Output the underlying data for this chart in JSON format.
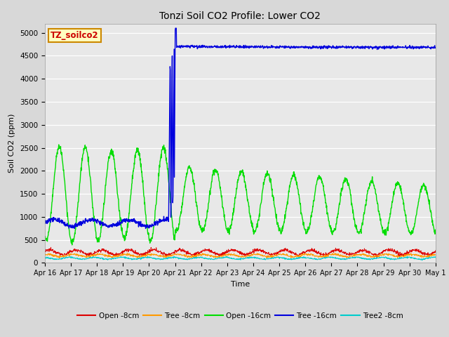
{
  "title": "Tonzi Soil CO2 Profile: Lower CO2",
  "xlabel": "Time",
  "ylabel": "Soil CO2 (ppm)",
  "ylim": [
    0,
    5200
  ],
  "yticks": [
    0,
    500,
    1000,
    1500,
    2000,
    2500,
    3000,
    3500,
    4000,
    4500,
    5000
  ],
  "fig_bg": "#d8d8d8",
  "plot_bg": "#e8e8e8",
  "legend_label": "TZ_soilco2",
  "series": {
    "open_8cm": {
      "color": "#dd0000",
      "label": "Open -8cm"
    },
    "tree_8cm": {
      "color": "#ff9900",
      "label": "Tree -8cm"
    },
    "open_16cm": {
      "color": "#00dd00",
      "label": "Open -16cm"
    },
    "tree_16cm": {
      "color": "#0000dd",
      "label": "Tree -16cm"
    },
    "tree2_8cm": {
      "color": "#00cccc",
      "label": "Tree2 -8cm"
    }
  },
  "x_tick_labels": [
    "Apr 16",
    "Apr 17",
    "Apr 18",
    "Apr 19",
    "Apr 20",
    "Apr 21",
    "Apr 22",
    "Apr 23",
    "Apr 24",
    "Apr 25",
    "Apr 26",
    "Apr 27",
    "Apr 28",
    "Apr 29",
    "Apr 30",
    "May 1"
  ],
  "n_days": 15,
  "pts_per_day": 96,
  "spike_day": 5.0,
  "title_fontsize": 10,
  "label_fontsize": 8,
  "tick_fontsize": 7,
  "legend_fontsize": 7.5
}
